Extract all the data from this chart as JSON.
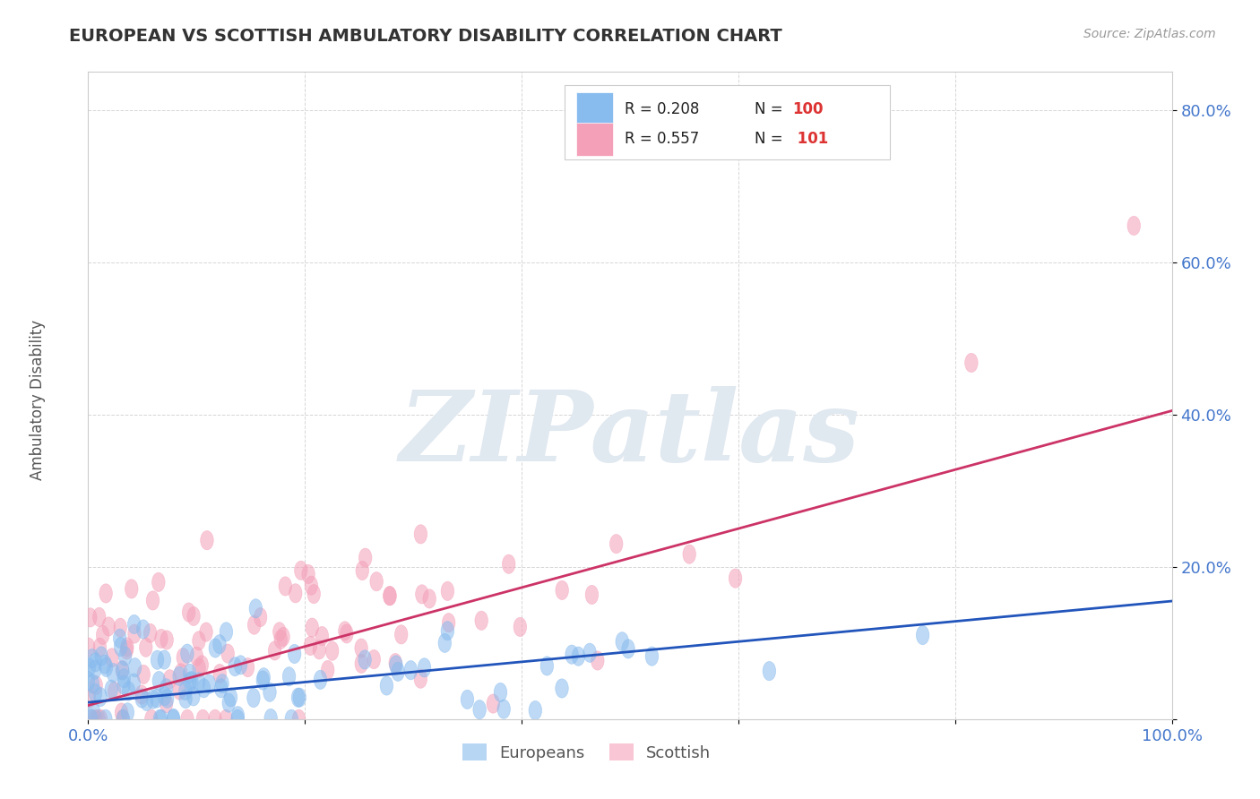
{
  "title": "EUROPEAN VS SCOTTISH AMBULATORY DISABILITY CORRELATION CHART",
  "source": "Source: ZipAtlas.com",
  "ylabel": "Ambulatory Disability",
  "watermark": "ZIPatlas",
  "europeans_R": 0.208,
  "scottish_R": 0.557,
  "europeans_N": 100,
  "scottish_N": 101,
  "scatter_color_europeans": "#88bbee",
  "scatter_color_scottish": "#f4a0b8",
  "line_color_europeans": "#2255bb",
  "line_color_scottish": "#cc3366",
  "eu_line_start": 0.022,
  "eu_line_end": 0.155,
  "sc_line_start": 0.018,
  "sc_line_end": 0.405,
  "xlim": [
    0.0,
    1.0
  ],
  "ylim": [
    0.0,
    0.85
  ],
  "x_ticks": [
    0.0,
    0.2,
    0.4,
    0.6,
    0.8,
    1.0
  ],
  "x_tick_labels": [
    "0.0%",
    "",
    "",
    "",
    "",
    "100.0%"
  ],
  "y_ticks": [
    0.0,
    0.2,
    0.4,
    0.6,
    0.8
  ],
  "y_tick_labels": [
    "",
    "20.0%",
    "40.0%",
    "60.0%",
    "80.0%"
  ],
  "background_color": "#ffffff",
  "grid_color": "#cccccc",
  "title_color": "#333333",
  "tick_color": "#4477cc",
  "axis_label_color": "#555555"
}
